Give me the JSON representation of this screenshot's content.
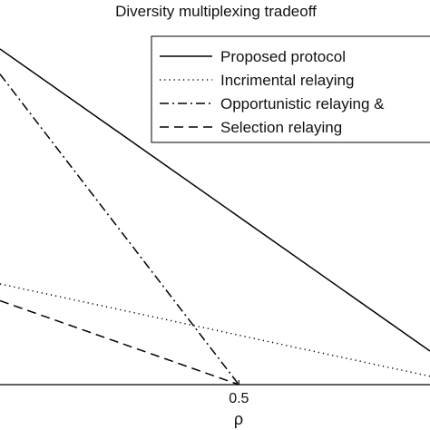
{
  "chart_data": {
    "type": "line",
    "title": "Diversity multiplexing tradeoff",
    "xlabel": "ρ",
    "ylabel": "",
    "xlim": [
      0.0,
      0.9
    ],
    "ylim": [
      0.0,
      2.0
    ],
    "x_ticks": [
      {
        "value": 0.5,
        "label": "0.5"
      }
    ],
    "grid": false,
    "legend_position": "top-right",
    "series": [
      {
        "name": "Proposed protocol",
        "style": "solid",
        "color": "#000000",
        "x": [
          0.0,
          0.9
        ],
        "y": [
          2.0,
          0.2
        ]
      },
      {
        "name": "Incrimental relaying",
        "style": "dotted",
        "color": "#000000",
        "x": [
          0.0,
          0.9
        ],
        "y": [
          0.6,
          0.05
        ]
      },
      {
        "name": "Opportunistic relaying &",
        "style": "dashdot",
        "color": "#000000",
        "x": [
          0.0,
          0.5
        ],
        "y": [
          1.85,
          0.0
        ]
      },
      {
        "name": "Selection relaying",
        "style": "dashed",
        "color": "#000000",
        "x": [
          0.0,
          0.5
        ],
        "y": [
          0.5,
          0.0
        ]
      }
    ]
  }
}
